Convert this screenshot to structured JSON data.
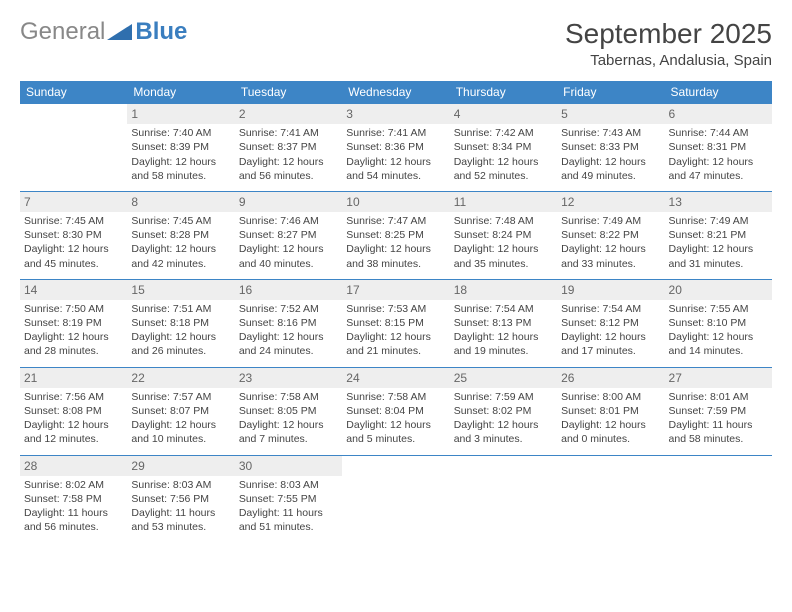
{
  "brand": {
    "part1": "General",
    "part2": "Blue",
    "triangle_color": "#2f6fae"
  },
  "title": "September 2025",
  "location": "Tabernas, Andalusia, Spain",
  "colors": {
    "header_bg": "#3d85c6",
    "header_text": "#ffffff",
    "daynum_bg": "#eeeeee",
    "border": "#3d85c6",
    "body_text": "#444444"
  },
  "weekdays": [
    "Sunday",
    "Monday",
    "Tuesday",
    "Wednesday",
    "Thursday",
    "Friday",
    "Saturday"
  ],
  "weeks": [
    [
      null,
      {
        "n": "1",
        "sr": "Sunrise: 7:40 AM",
        "ss": "Sunset: 8:39 PM",
        "d1": "Daylight: 12 hours",
        "d2": "and 58 minutes."
      },
      {
        "n": "2",
        "sr": "Sunrise: 7:41 AM",
        "ss": "Sunset: 8:37 PM",
        "d1": "Daylight: 12 hours",
        "d2": "and 56 minutes."
      },
      {
        "n": "3",
        "sr": "Sunrise: 7:41 AM",
        "ss": "Sunset: 8:36 PM",
        "d1": "Daylight: 12 hours",
        "d2": "and 54 minutes."
      },
      {
        "n": "4",
        "sr": "Sunrise: 7:42 AM",
        "ss": "Sunset: 8:34 PM",
        "d1": "Daylight: 12 hours",
        "d2": "and 52 minutes."
      },
      {
        "n": "5",
        "sr": "Sunrise: 7:43 AM",
        "ss": "Sunset: 8:33 PM",
        "d1": "Daylight: 12 hours",
        "d2": "and 49 minutes."
      },
      {
        "n": "6",
        "sr": "Sunrise: 7:44 AM",
        "ss": "Sunset: 8:31 PM",
        "d1": "Daylight: 12 hours",
        "d2": "and 47 minutes."
      }
    ],
    [
      {
        "n": "7",
        "sr": "Sunrise: 7:45 AM",
        "ss": "Sunset: 8:30 PM",
        "d1": "Daylight: 12 hours",
        "d2": "and 45 minutes."
      },
      {
        "n": "8",
        "sr": "Sunrise: 7:45 AM",
        "ss": "Sunset: 8:28 PM",
        "d1": "Daylight: 12 hours",
        "d2": "and 42 minutes."
      },
      {
        "n": "9",
        "sr": "Sunrise: 7:46 AM",
        "ss": "Sunset: 8:27 PM",
        "d1": "Daylight: 12 hours",
        "d2": "and 40 minutes."
      },
      {
        "n": "10",
        "sr": "Sunrise: 7:47 AM",
        "ss": "Sunset: 8:25 PM",
        "d1": "Daylight: 12 hours",
        "d2": "and 38 minutes."
      },
      {
        "n": "11",
        "sr": "Sunrise: 7:48 AM",
        "ss": "Sunset: 8:24 PM",
        "d1": "Daylight: 12 hours",
        "d2": "and 35 minutes."
      },
      {
        "n": "12",
        "sr": "Sunrise: 7:49 AM",
        "ss": "Sunset: 8:22 PM",
        "d1": "Daylight: 12 hours",
        "d2": "and 33 minutes."
      },
      {
        "n": "13",
        "sr": "Sunrise: 7:49 AM",
        "ss": "Sunset: 8:21 PM",
        "d1": "Daylight: 12 hours",
        "d2": "and 31 minutes."
      }
    ],
    [
      {
        "n": "14",
        "sr": "Sunrise: 7:50 AM",
        "ss": "Sunset: 8:19 PM",
        "d1": "Daylight: 12 hours",
        "d2": "and 28 minutes."
      },
      {
        "n": "15",
        "sr": "Sunrise: 7:51 AM",
        "ss": "Sunset: 8:18 PM",
        "d1": "Daylight: 12 hours",
        "d2": "and 26 minutes."
      },
      {
        "n": "16",
        "sr": "Sunrise: 7:52 AM",
        "ss": "Sunset: 8:16 PM",
        "d1": "Daylight: 12 hours",
        "d2": "and 24 minutes."
      },
      {
        "n": "17",
        "sr": "Sunrise: 7:53 AM",
        "ss": "Sunset: 8:15 PM",
        "d1": "Daylight: 12 hours",
        "d2": "and 21 minutes."
      },
      {
        "n": "18",
        "sr": "Sunrise: 7:54 AM",
        "ss": "Sunset: 8:13 PM",
        "d1": "Daylight: 12 hours",
        "d2": "and 19 minutes."
      },
      {
        "n": "19",
        "sr": "Sunrise: 7:54 AM",
        "ss": "Sunset: 8:12 PM",
        "d1": "Daylight: 12 hours",
        "d2": "and 17 minutes."
      },
      {
        "n": "20",
        "sr": "Sunrise: 7:55 AM",
        "ss": "Sunset: 8:10 PM",
        "d1": "Daylight: 12 hours",
        "d2": "and 14 minutes."
      }
    ],
    [
      {
        "n": "21",
        "sr": "Sunrise: 7:56 AM",
        "ss": "Sunset: 8:08 PM",
        "d1": "Daylight: 12 hours",
        "d2": "and 12 minutes."
      },
      {
        "n": "22",
        "sr": "Sunrise: 7:57 AM",
        "ss": "Sunset: 8:07 PM",
        "d1": "Daylight: 12 hours",
        "d2": "and 10 minutes."
      },
      {
        "n": "23",
        "sr": "Sunrise: 7:58 AM",
        "ss": "Sunset: 8:05 PM",
        "d1": "Daylight: 12 hours",
        "d2": "and 7 minutes."
      },
      {
        "n": "24",
        "sr": "Sunrise: 7:58 AM",
        "ss": "Sunset: 8:04 PM",
        "d1": "Daylight: 12 hours",
        "d2": "and 5 minutes."
      },
      {
        "n": "25",
        "sr": "Sunrise: 7:59 AM",
        "ss": "Sunset: 8:02 PM",
        "d1": "Daylight: 12 hours",
        "d2": "and 3 minutes."
      },
      {
        "n": "26",
        "sr": "Sunrise: 8:00 AM",
        "ss": "Sunset: 8:01 PM",
        "d1": "Daylight: 12 hours",
        "d2": "and 0 minutes."
      },
      {
        "n": "27",
        "sr": "Sunrise: 8:01 AM",
        "ss": "Sunset: 7:59 PM",
        "d1": "Daylight: 11 hours",
        "d2": "and 58 minutes."
      }
    ],
    [
      {
        "n": "28",
        "sr": "Sunrise: 8:02 AM",
        "ss": "Sunset: 7:58 PM",
        "d1": "Daylight: 11 hours",
        "d2": "and 56 minutes."
      },
      {
        "n": "29",
        "sr": "Sunrise: 8:03 AM",
        "ss": "Sunset: 7:56 PM",
        "d1": "Daylight: 11 hours",
        "d2": "and 53 minutes."
      },
      {
        "n": "30",
        "sr": "Sunrise: 8:03 AM",
        "ss": "Sunset: 7:55 PM",
        "d1": "Daylight: 11 hours",
        "d2": "and 51 minutes."
      },
      null,
      null,
      null,
      null
    ]
  ]
}
